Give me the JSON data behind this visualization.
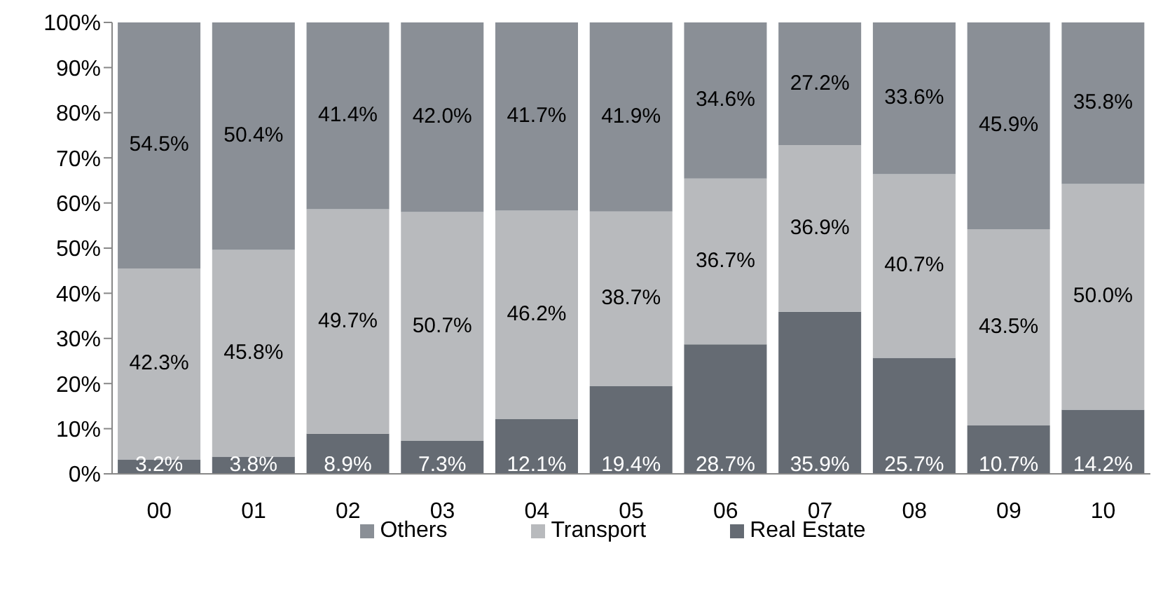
{
  "chart_data": {
    "type": "bar",
    "stacked": true,
    "categories": [
      "00",
      "01",
      "02",
      "03",
      "04",
      "05",
      "06",
      "07",
      "08",
      "09",
      "10"
    ],
    "series": [
      {
        "name": "Real Estate",
        "color": "#656b73",
        "values": [
          3.2,
          3.8,
          8.9,
          7.3,
          12.1,
          19.4,
          28.7,
          35.9,
          25.7,
          10.7,
          14.2
        ],
        "value_labels": [
          "3.2%",
          "3.8%",
          "8.9%",
          "7.3%",
          "12.1%",
          "19.4%",
          "28.7%",
          "35.9%",
          "25.7%",
          "10.7%",
          "14.2%"
        ]
      },
      {
        "name": "Transport",
        "color": "#b8babd",
        "values": [
          42.3,
          45.8,
          49.7,
          50.7,
          46.2,
          38.7,
          36.7,
          36.9,
          40.7,
          43.5,
          50.0
        ],
        "value_labels": [
          "42.3%",
          "45.8%",
          "49.7%",
          "50.7%",
          "46.2%",
          "38.7%",
          "36.7%",
          "36.9%",
          "40.7%",
          "43.5%",
          "50.0%"
        ]
      },
      {
        "name": "Others",
        "color": "#8a8f96",
        "values": [
          54.5,
          50.4,
          41.4,
          42.0,
          41.7,
          41.9,
          34.6,
          27.2,
          33.6,
          45.9,
          35.8
        ],
        "value_labels": [
          "54.5%",
          "50.4%",
          "41.4%",
          "42.0%",
          "41.7%",
          "41.9%",
          "34.6%",
          "27.2%",
          "33.6%",
          "45.9%",
          "35.8%"
        ]
      }
    ],
    "ylim": [
      0,
      100
    ],
    "yticks": [
      {
        "value": 0,
        "label": "0%"
      },
      {
        "value": 10,
        "label": "10%"
      },
      {
        "value": 20,
        "label": "20%"
      },
      {
        "value": 30,
        "label": "30%"
      },
      {
        "value": 40,
        "label": "40%"
      },
      {
        "value": 50,
        "label": "50%"
      },
      {
        "value": 60,
        "label": "60%"
      },
      {
        "value": 70,
        "label": "70%"
      },
      {
        "value": 80,
        "label": "80%"
      },
      {
        "value": 90,
        "label": "90%"
      },
      {
        "value": 100,
        "label": "100%"
      }
    ],
    "grid": false,
    "legend": "bottom"
  }
}
